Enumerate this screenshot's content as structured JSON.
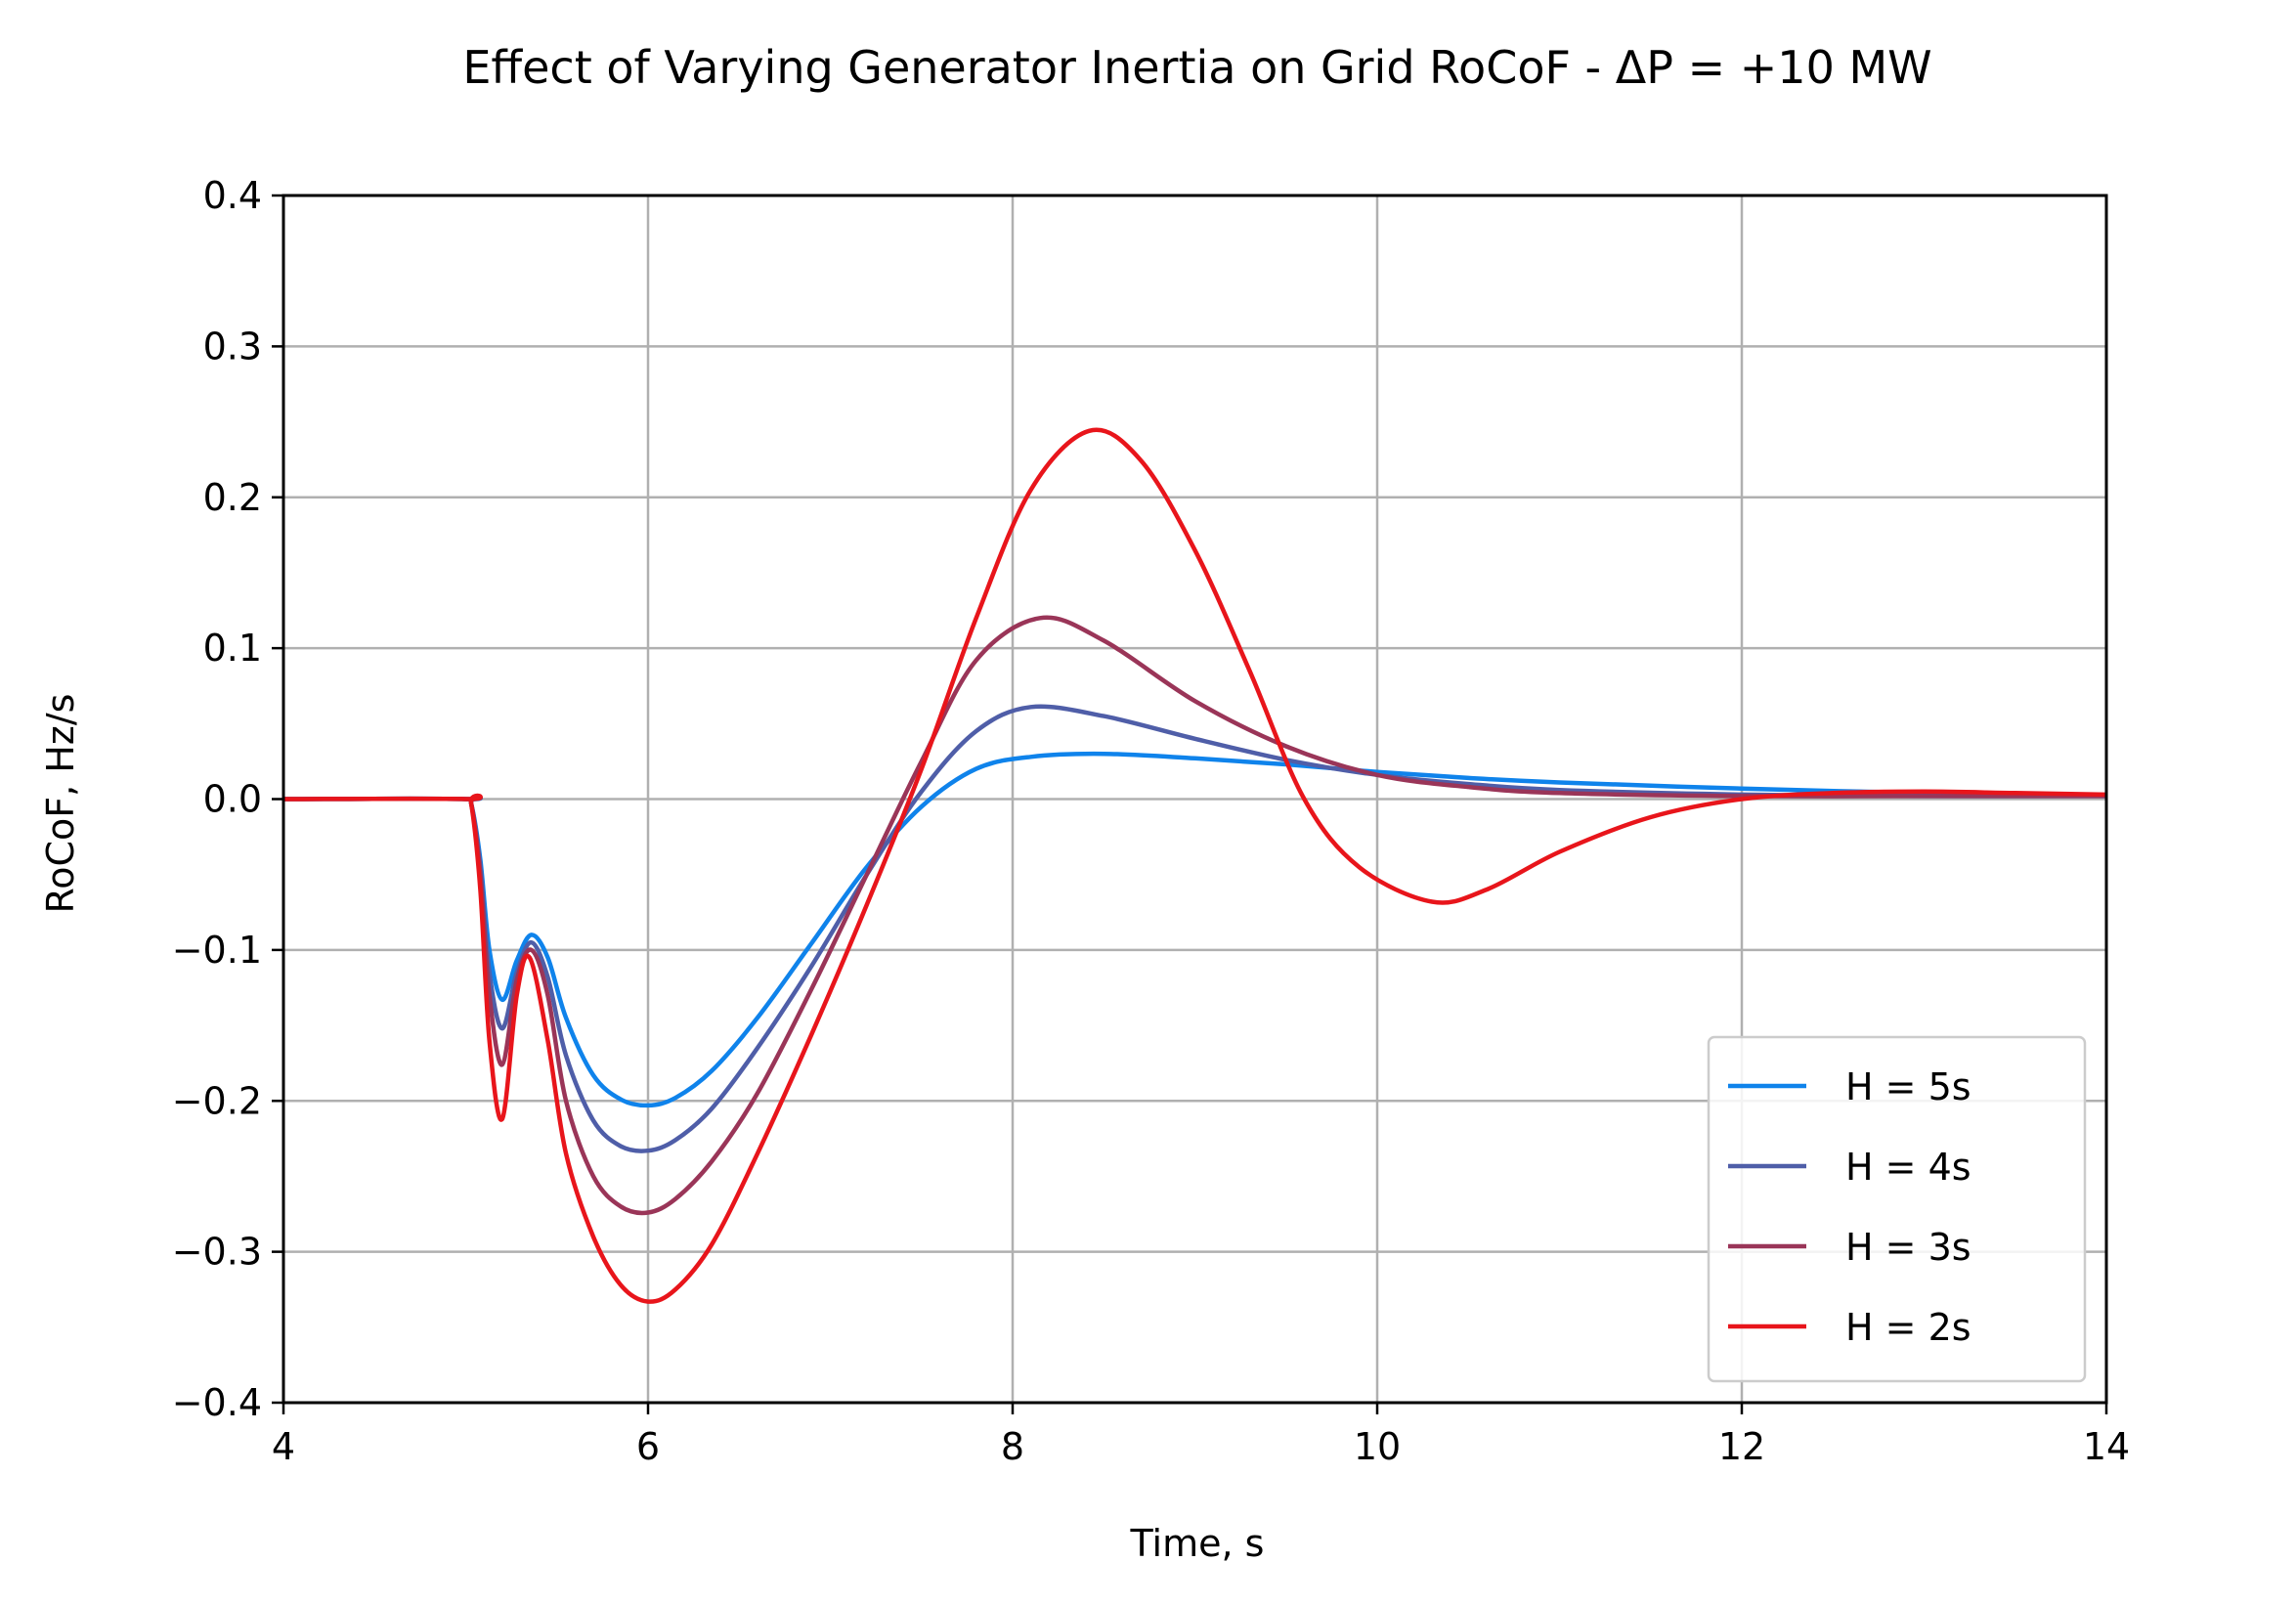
{
  "chart_data": {
    "type": "line",
    "title": "Effect of Varying Generator Inertia on Grid RoCoF - ΔP = +10 MW",
    "xlabel": "Time, s",
    "ylabel": "RoCoF, Hz/s",
    "xlim": [
      4,
      14
    ],
    "ylim": [
      -0.4,
      0.4
    ],
    "xticks": [
      4,
      6,
      8,
      10,
      12,
      14
    ],
    "xtick_labels": [
      "4",
      "6",
      "8",
      "10",
      "12",
      "14"
    ],
    "yticks": [
      -0.4,
      -0.3,
      -0.2,
      -0.1,
      0.0,
      0.1,
      0.2,
      0.3,
      0.4
    ],
    "ytick_labels": [
      "−0.4",
      "−0.3",
      "−0.2",
      "−0.1",
      "0.0",
      "0.1",
      "0.2",
      "0.3",
      "0.4"
    ],
    "grid": true,
    "legend_position": "lower-right",
    "series": [
      {
        "name": "H = 5s",
        "color": "#0f83eb",
        "x": [
          4.0,
          5.0,
          5.03,
          5.08,
          5.13,
          5.2,
          5.28,
          5.36,
          5.45,
          5.55,
          5.7,
          5.85,
          6.0,
          6.15,
          6.35,
          6.6,
          6.9,
          7.2,
          7.5,
          7.8,
          8.1,
          8.5,
          9.0,
          9.5,
          10.0,
          10.5,
          11.0,
          12.0,
          13.0,
          14.0
        ],
        "y": [
          0.0,
          0.0,
          -0.003,
          -0.04,
          -0.1,
          -0.133,
          -0.107,
          -0.09,
          -0.105,
          -0.145,
          -0.183,
          -0.199,
          -0.203,
          -0.198,
          -0.18,
          -0.145,
          -0.095,
          -0.045,
          -0.005,
          0.02,
          0.028,
          0.03,
          0.027,
          0.023,
          0.018,
          0.014,
          0.011,
          0.007,
          0.004,
          0.002
        ]
      },
      {
        "name": "H = 4s",
        "color": "#4f5ea8",
        "x": [
          4.0,
          5.0,
          5.03,
          5.08,
          5.13,
          5.2,
          5.28,
          5.36,
          5.45,
          5.55,
          5.7,
          5.85,
          6.0,
          6.15,
          6.35,
          6.6,
          6.9,
          7.2,
          7.5,
          7.8,
          8.1,
          8.5,
          9.0,
          9.5,
          10.0,
          10.5,
          11.0,
          12.0,
          13.0,
          14.0
        ],
        "y": [
          0.0,
          0.0,
          -0.003,
          -0.045,
          -0.115,
          -0.152,
          -0.115,
          -0.095,
          -0.118,
          -0.17,
          -0.213,
          -0.23,
          -0.233,
          -0.226,
          -0.205,
          -0.165,
          -0.11,
          -0.05,
          0.005,
          0.045,
          0.061,
          0.055,
          0.04,
          0.026,
          0.016,
          0.01,
          0.006,
          0.003,
          0.002,
          0.002
        ]
      },
      {
        "name": "H = 3s",
        "color": "#9a3558",
        "x": [
          4.0,
          5.0,
          5.03,
          5.08,
          5.13,
          5.2,
          5.28,
          5.36,
          5.45,
          5.55,
          5.7,
          5.85,
          6.0,
          6.15,
          6.35,
          6.6,
          6.9,
          7.2,
          7.5,
          7.8,
          8.15,
          8.5,
          9.0,
          9.5,
          10.0,
          10.5,
          11.0,
          12.0,
          13.0,
          14.0
        ],
        "y": [
          0.0,
          0.0,
          -0.003,
          -0.05,
          -0.13,
          -0.176,
          -0.12,
          -0.1,
          -0.13,
          -0.2,
          -0.25,
          -0.27,
          -0.274,
          -0.265,
          -0.24,
          -0.195,
          -0.125,
          -0.05,
          0.025,
          0.092,
          0.12,
          0.105,
          0.065,
          0.035,
          0.016,
          0.008,
          0.004,
          0.002,
          0.002,
          0.002
        ]
      },
      {
        "name": "H = 2s",
        "color": "#e8151b",
        "x": [
          4.0,
          5.0,
          5.03,
          5.08,
          5.13,
          5.2,
          5.28,
          5.35,
          5.45,
          5.55,
          5.7,
          5.85,
          6.0,
          6.15,
          6.35,
          6.6,
          6.9,
          7.2,
          7.5,
          7.8,
          8.1,
          8.42,
          8.7,
          9.0,
          9.3,
          9.6,
          9.9,
          10.3,
          10.6,
          11.0,
          11.5,
          12.0,
          12.5,
          13.0,
          13.5,
          14.0
        ],
        "y": [
          0.0,
          0.0,
          -0.003,
          -0.06,
          -0.16,
          -0.212,
          -0.13,
          -0.105,
          -0.16,
          -0.235,
          -0.29,
          -0.322,
          -0.333,
          -0.325,
          -0.295,
          -0.235,
          -0.155,
          -0.07,
          0.02,
          0.12,
          0.205,
          0.244,
          0.225,
          0.165,
          0.085,
          0.0,
          -0.045,
          -0.068,
          -0.06,
          -0.035,
          -0.012,
          0.0,
          0.004,
          0.005,
          0.004,
          0.003
        ]
      }
    ]
  }
}
